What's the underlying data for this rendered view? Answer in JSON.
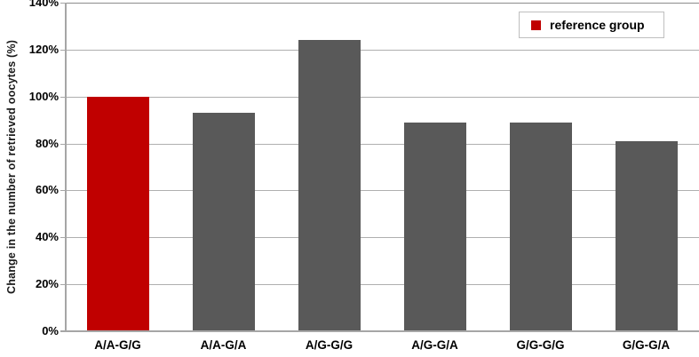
{
  "chart_data": {
    "type": "bar",
    "title": "",
    "xlabel": "",
    "ylabel": "Change in the number of retrieved oocytes (%)",
    "categories": [
      "A/A-G/G",
      "A/A-G/A",
      "A/G-G/G",
      "A/G-G/A",
      "G/G-G/G",
      "G/G-G/A"
    ],
    "values": [
      100,
      93,
      124,
      89,
      89,
      81
    ],
    "unit": "%",
    "ylim": [
      0,
      140
    ],
    "ytick_step": 20,
    "ytick_labels": [
      "0%",
      "20%",
      "40%",
      "60%",
      "80%",
      "100%",
      "120%",
      "140%"
    ],
    "grid": true,
    "reference_index": 0,
    "legend": {
      "position": "top-right",
      "items": [
        {
          "label": "reference group",
          "color": "#c00000"
        }
      ]
    },
    "colors": {
      "reference_bar": "#c00000",
      "default_bar": "#595959",
      "gridline": "#afafaf",
      "axis": "#a6a6a6",
      "legend_border": "#bfbfbf",
      "text": "#000000"
    }
  }
}
